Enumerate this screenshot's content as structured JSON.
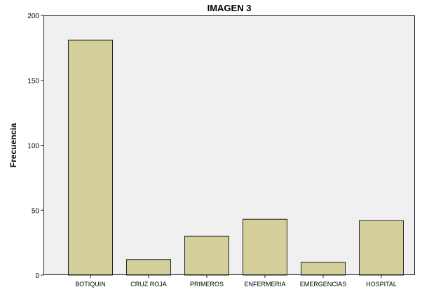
{
  "chart_data": {
    "type": "bar",
    "title": "IMAGEN 3",
    "xlabel": "",
    "ylabel": "Frecuencia",
    "categories": [
      "BOTIQUIN",
      "CRUZ ROJA",
      "PRIMEROS",
      "ENFERMERIA",
      "EMERGENCIAS",
      "HOSPITAL"
    ],
    "values": [
      181,
      12,
      30,
      43,
      10,
      42
    ],
    "ylim": [
      0,
      200
    ],
    "yticks": [
      0,
      50,
      100,
      150,
      200
    ],
    "grid": false,
    "colors": {
      "bar_fill": "#d4cf9a",
      "bar_stroke": "#222222",
      "plot_bg": "#f0f0f0",
      "frame": "#222222"
    }
  }
}
